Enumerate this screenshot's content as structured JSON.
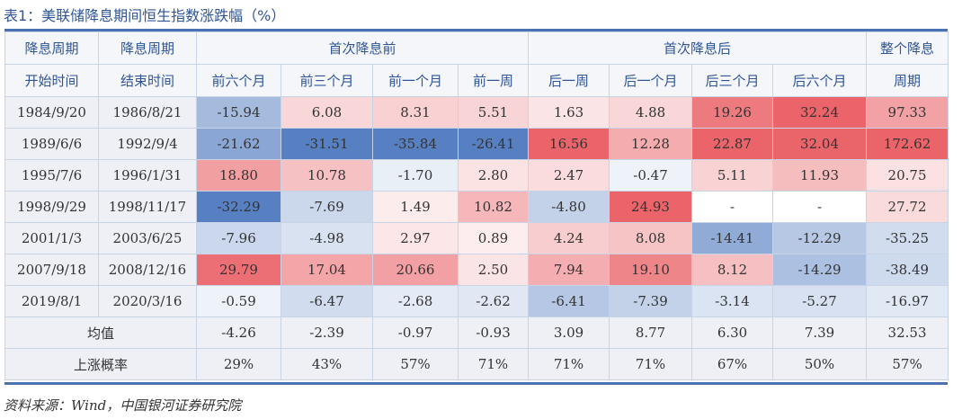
{
  "title": "表1：美联储降息期间恒生指数涨跌幅（%）",
  "headers": {
    "start_line1": "降息周期",
    "start_line2": "开始时间",
    "end_line1": "降息周期",
    "end_line2": "结束时间",
    "before_group": "首次降息前",
    "after_group": "首次降息后",
    "whole_line1": "整个降息",
    "whole_line2": "周期",
    "before_cols": [
      "前六个月",
      "前三个月",
      "前一个月",
      "前一周"
    ],
    "after_cols": [
      "后一周",
      "后一个月",
      "后三个月",
      "后六个月"
    ]
  },
  "rows": [
    {
      "start": "1984/9/20",
      "end": "1986/8/21",
      "values": [
        "-15.94",
        "6.08",
        "8.31",
        "5.51",
        "1.63",
        "4.88",
        "19.26",
        "32.24",
        "97.33"
      ]
    },
    {
      "start": "1989/6/6",
      "end": "1992/9/4",
      "values": [
        "-21.62",
        "-31.51",
        "-35.84",
        "-26.41",
        "16.56",
        "12.28",
        "22.87",
        "32.04",
        "172.62"
      ]
    },
    {
      "start": "1995/7/6",
      "end": "1996/1/31",
      "values": [
        "18.80",
        "10.78",
        "-1.70",
        "2.80",
        "2.47",
        "-0.47",
        "5.11",
        "11.93",
        "20.75"
      ]
    },
    {
      "start": "1998/9/29",
      "end": "1998/11/17",
      "values": [
        "-32.29",
        "-7.69",
        "1.49",
        "10.82",
        "-4.80",
        "24.93",
        "-",
        "-",
        "27.72"
      ]
    },
    {
      "start": "2001/1/3",
      "end": "2003/6/25",
      "values": [
        "-7.96",
        "-4.98",
        "2.97",
        "0.89",
        "4.24",
        "8.08",
        "-14.41",
        "-12.29",
        "-35.25"
      ]
    },
    {
      "start": "2007/9/18",
      "end": "2008/12/16",
      "values": [
        "29.79",
        "17.04",
        "20.66",
        "2.50",
        "7.94",
        "19.10",
        "8.12",
        "-14.29",
        "-38.49"
      ]
    },
    {
      "start": "2019/8/1",
      "end": "2020/3/16",
      "values": [
        "-0.59",
        "-6.47",
        "-2.68",
        "-2.62",
        "-6.41",
        "-7.39",
        "-3.14",
        "-5.27",
        "-16.97"
      ]
    }
  ],
  "summary": [
    {
      "label": "均值",
      "values": [
        "-4.26",
        "-2.39",
        "-0.97",
        "-0.93",
        "3.09",
        "8.77",
        "6.30",
        "7.39",
        "32.53"
      ]
    },
    {
      "label": "上涨概率",
      "values": [
        "29%",
        "43%",
        "57%",
        "71%",
        "71%",
        "71%",
        "67%",
        "50%",
        "57%"
      ]
    }
  ],
  "colors": {
    "positive": "#e8585e",
    "negative": "#4a76bd",
    "accent": "#2f5597"
  },
  "source": "资料来源：Wind，中国银河证券研究院"
}
